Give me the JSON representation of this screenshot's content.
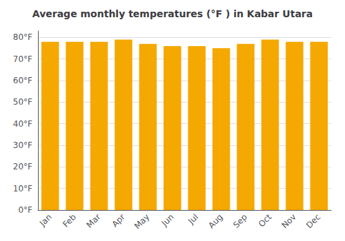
{
  "chart_data": {
    "type": "bar",
    "title": "Average monthly temperatures (°F ) in Kabar Utara",
    "categories": [
      "Jan",
      "Feb",
      "Mar",
      "Apr",
      "May",
      "Jun",
      "Jul",
      "Aug",
      "Sep",
      "Oct",
      "Nov",
      "Dec"
    ],
    "values": [
      78,
      78,
      78,
      79,
      77,
      76,
      76,
      75,
      77,
      79,
      78,
      78
    ],
    "color": "#F5A800",
    "ylim": [
      0,
      83
    ],
    "yticks": [
      {
        "value": 0,
        "label": "0°F"
      },
      {
        "value": 10,
        "label": "10°F"
      },
      {
        "value": 20,
        "label": "20°F"
      },
      {
        "value": 30,
        "label": "30°F"
      },
      {
        "value": 40,
        "label": "40°F"
      },
      {
        "value": 50,
        "label": "50°F"
      },
      {
        "value": 60,
        "label": "60°F"
      },
      {
        "value": 70,
        "label": "70°F"
      },
      {
        "value": 80,
        "label": "80°F"
      }
    ],
    "grid": true
  }
}
